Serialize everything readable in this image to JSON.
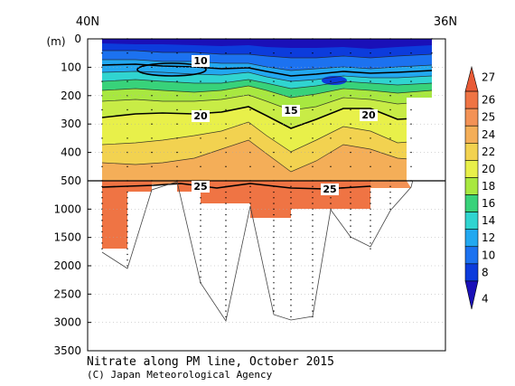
{
  "chart_data": {
    "type": "heatmap",
    "title": "Nitrate along PM line, October 2015",
    "credit": "(C) Japan Meteorological Agency",
    "x_range": [
      "40N",
      "36N"
    ],
    "x_tick_labels": [
      "40N",
      "36N"
    ],
    "ylabel": "(m)",
    "y_upper": {
      "ticks": [
        0,
        100,
        200,
        300,
        400,
        500
      ],
      "range": [
        0,
        500
      ]
    },
    "y_lower": {
      "ticks": [
        1000,
        1500,
        2000,
        2500,
        3000,
        3500
      ],
      "range": [
        500,
        3500
      ]
    },
    "colorbar": {
      "levels": [
        4,
        8,
        10,
        12,
        14,
        16,
        18,
        20,
        22,
        24,
        25,
        26,
        27
      ],
      "labels": [
        "4",
        "8",
        "10",
        "12",
        "14",
        "16",
        "18",
        "20",
        "22",
        "24",
        "25",
        "26",
        "27"
      ],
      "colors": [
        "#1a10b8",
        "#0c3cdc",
        "#1c72f0",
        "#22a8f0",
        "#30d4d0",
        "#38d27a",
        "#a8e840",
        "#e8f04a",
        "#f2d250",
        "#f4ae58",
        "#f39256",
        "#ef7444",
        "#e85a36"
      ]
    },
    "contour_labels": [
      "10",
      "15",
      "20",
      "20",
      "25",
      "25"
    ],
    "station_profiles": [
      {
        "station": 1,
        "bottom_m": 1700,
        "deepest_nitrate": 25
      },
      {
        "station": 2,
        "bottom_m": 700,
        "deepest_nitrate": 25
      },
      {
        "station": 3,
        "bottom_m": 500,
        "deepest_nitrate": 25
      },
      {
        "station": 4,
        "bottom_m": 900,
        "deepest_nitrate": 25
      },
      {
        "station": 5,
        "bottom_m": 1150,
        "deepest_nitrate": 25
      },
      {
        "station": 6,
        "bottom_m": 1000,
        "deepest_nitrate": 25
      },
      {
        "station": 7,
        "bottom_m": 500,
        "deepest_nitrate": 25
      }
    ],
    "grid": true
  }
}
